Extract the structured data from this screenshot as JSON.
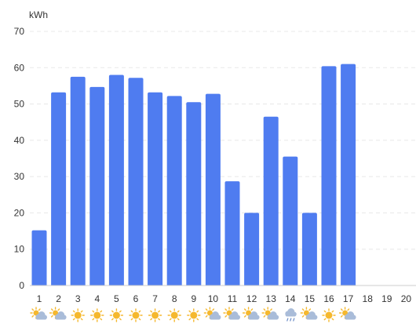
{
  "chart_data": {
    "type": "bar",
    "ylabel": "kWh",
    "ylim": [
      0,
      70
    ],
    "yticks": [
      0,
      10,
      20,
      30,
      40,
      50,
      60,
      70
    ],
    "grid": true,
    "categories": [
      "1",
      "2",
      "3",
      "4",
      "5",
      "6",
      "7",
      "8",
      "9",
      "10",
      "11",
      "12",
      "13",
      "14",
      "15",
      "16",
      "17",
      "18",
      "19",
      "20"
    ],
    "series": [
      {
        "values": [
          15.2,
          53.2,
          57.5,
          54.7,
          58.0,
          57.2,
          53.2,
          52.2,
          50.5,
          52.8,
          28.7,
          20.0,
          46.5,
          35.5,
          20.0,
          60.4,
          61.0,
          null,
          null,
          null
        ]
      }
    ],
    "weather": [
      "partly-cloudy",
      "partly-cloudy",
      "sunny",
      "sunny",
      "sunny",
      "sunny",
      "sunny",
      "sunny",
      "sunny",
      "partly-cloudy",
      "partly-cloudy",
      "partly-cloudy",
      "partly-cloudy",
      "rain",
      "partly-cloudy",
      "sunny",
      "partly-cloudy",
      null,
      null,
      null
    ],
    "colors": {
      "bar": "#4f7cf0",
      "grid": "#e8e8e8",
      "axis": "#cccccc",
      "sun": "#f5b82e",
      "cloud": "#a9bcd9",
      "rain": "#6f8fc8"
    }
  }
}
